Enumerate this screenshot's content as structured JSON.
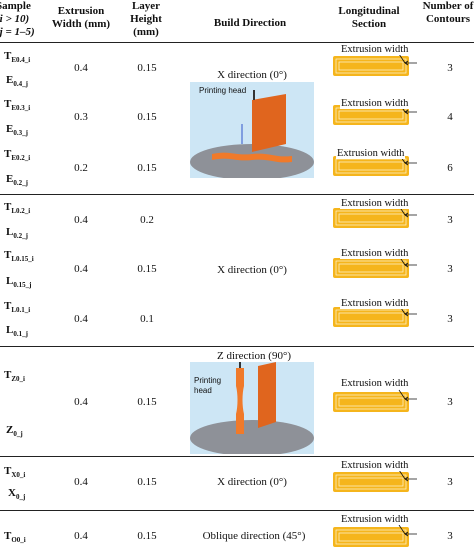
{
  "header": {
    "sample": "Sample",
    "sample_i": "(i > 10)",
    "sample_j": "(j = 1–5)",
    "ext_width": "Extrusion Width (mm)",
    "layer_height": "Layer Height (mm)",
    "build_direction": "Build Direction",
    "longitudinal": "Longitudinal Section",
    "contours": "Number of Contours"
  },
  "samples": [
    {
      "a": "T",
      "a_sub": "E0.4_i",
      "b": "E",
      "b_sub": "0.4_j",
      "width": "0.4",
      "height": "0.15",
      "contours": "3"
    },
    {
      "a": "T",
      "a_sub": "E0.3_i",
      "b": "E",
      "b_sub": "0.3_j",
      "width": "0.3",
      "height": "0.15",
      "contours": "4"
    },
    {
      "a": "T",
      "a_sub": "E0.2_i",
      "b": "E",
      "b_sub": "0.2_j",
      "width": "0.2",
      "height": "0.15",
      "contours": "6"
    },
    {
      "a": "T",
      "a_sub": "L0.2_i",
      "b": "L",
      "b_sub": "0.2_j",
      "width": "0.4",
      "height": "0.2",
      "contours": "3"
    },
    {
      "a": "T",
      "a_sub": "L0.15_i",
      "b": "L",
      "b_sub": "0.15_j",
      "width": "0.4",
      "height": "0.15",
      "contours": "3"
    },
    {
      "a": "T",
      "a_sub": "L0.1_i",
      "b": "L",
      "b_sub": "0.1_j",
      "width": "0.4",
      "height": "0.1",
      "contours": "3"
    },
    {
      "a": "T",
      "a_sub": "Z0_i",
      "b": "Z",
      "b_sub": "0_j",
      "width": "0.4",
      "height": "0.15",
      "contours": "3"
    },
    {
      "a": "T",
      "a_sub": "X0_i",
      "b": "X",
      "b_sub": "0_j",
      "width": "0.4",
      "height": "0.15",
      "contours": "3"
    },
    {
      "a": "T",
      "a_sub": "O0_i",
      "b": "",
      "b_sub": "",
      "width": "0.4",
      "height": "0.15",
      "contours": "3"
    }
  ],
  "directions": {
    "group1": "X direction (0°)",
    "group1_label": "Printing head",
    "group2": "X direction (0°)",
    "group3": "Z direction (90°)",
    "group3_label": "Printing head",
    "group4": "X direction (0°)",
    "group5": "Oblique direction (45°)"
  },
  "extrusion_label": "Extrusion width",
  "colors": {
    "section_fill": "#f5b51c",
    "section_line": "#fff6d8",
    "specimen": "#e0651e",
    "bed": "#8e9198",
    "sky": "#cde6f5"
  }
}
